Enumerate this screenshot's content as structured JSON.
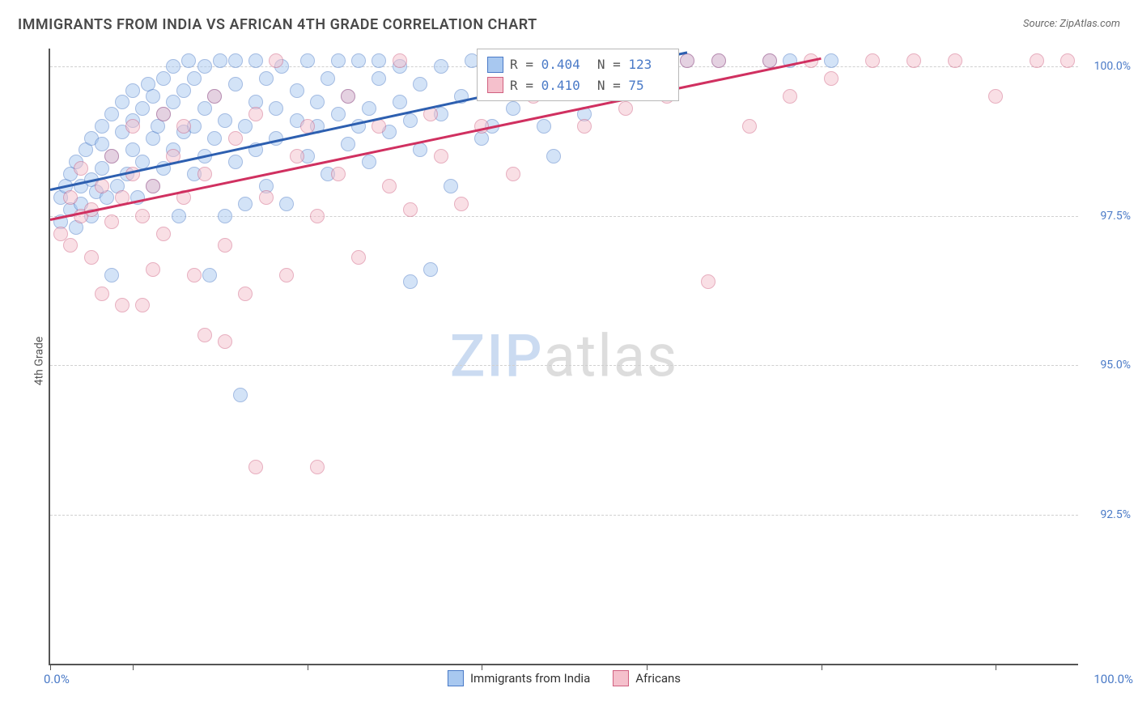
{
  "title": "IMMIGRANTS FROM INDIA VS AFRICAN 4TH GRADE CORRELATION CHART",
  "source": "Source: ZipAtlas.com",
  "ylabel": "4th Grade",
  "watermark_a": "ZIP",
  "watermark_b": "atlas",
  "chart": {
    "type": "scatter",
    "xlim": [
      0,
      100
    ],
    "ylim": [
      90,
      100.3
    ],
    "x_tick_positions": [
      0,
      8,
      25,
      42,
      58,
      75,
      92
    ],
    "xlim_labels": {
      "min": "0.0%",
      "max": "100.0%"
    },
    "y_ticks": [
      {
        "v": 92.5,
        "label": "92.5%"
      },
      {
        "v": 95.0,
        "label": "95.0%"
      },
      {
        "v": 97.5,
        "label": "97.5%"
      },
      {
        "v": 100.0,
        "label": "100.0%"
      }
    ],
    "grid_color": "#d0d0d0",
    "background_color": "#ffffff",
    "marker_radius": 8,
    "marker_opacity": 0.5,
    "series": [
      {
        "name": "Immigrants from India",
        "fill": "#a8c8f0",
        "stroke": "#4a7ac7",
        "line_color": "#2d5fb0",
        "R": "0.404",
        "N": "123",
        "trend": {
          "x1": 0,
          "y1": 97.95,
          "x2": 62,
          "y2": 100.25
        },
        "points": [
          [
            1,
            97.4
          ],
          [
            1,
            97.8
          ],
          [
            1.5,
            98.0
          ],
          [
            2,
            97.6
          ],
          [
            2,
            98.2
          ],
          [
            2.5,
            97.3
          ],
          [
            2.5,
            98.4
          ],
          [
            3,
            98.0
          ],
          [
            3,
            97.7
          ],
          [
            3.5,
            98.6
          ],
          [
            4,
            97.5
          ],
          [
            4,
            98.1
          ],
          [
            4,
            98.8
          ],
          [
            4.5,
            97.9
          ],
          [
            5,
            98.3
          ],
          [
            5,
            98.7
          ],
          [
            5,
            99.0
          ],
          [
            5.5,
            97.8
          ],
          [
            6,
            98.5
          ],
          [
            6,
            99.2
          ],
          [
            6,
            96.5
          ],
          [
            6.5,
            98.0
          ],
          [
            7,
            98.9
          ],
          [
            7,
            99.4
          ],
          [
            7.5,
            98.2
          ],
          [
            8,
            98.6
          ],
          [
            8,
            99.1
          ],
          [
            8,
            99.6
          ],
          [
            8.5,
            97.8
          ],
          [
            9,
            98.4
          ],
          [
            9,
            99.3
          ],
          [
            9.5,
            99.7
          ],
          [
            10,
            98.0
          ],
          [
            10,
            98.8
          ],
          [
            10,
            99.5
          ],
          [
            10.5,
            99.0
          ],
          [
            11,
            98.3
          ],
          [
            11,
            99.2
          ],
          [
            11,
            99.8
          ],
          [
            12,
            98.6
          ],
          [
            12,
            99.4
          ],
          [
            12,
            100.0
          ],
          [
            12.5,
            97.5
          ],
          [
            13,
            98.9
          ],
          [
            13,
            99.6
          ],
          [
            13.5,
            100.1
          ],
          [
            14,
            98.2
          ],
          [
            14,
            99.0
          ],
          [
            14,
            99.8
          ],
          [
            15,
            98.5
          ],
          [
            15,
            99.3
          ],
          [
            15,
            100.0
          ],
          [
            15.5,
            96.5
          ],
          [
            16,
            98.8
          ],
          [
            16,
            99.5
          ],
          [
            16.5,
            100.1
          ],
          [
            17,
            97.5
          ],
          [
            17,
            99.1
          ],
          [
            18,
            98.4
          ],
          [
            18,
            99.7
          ],
          [
            18,
            100.1
          ],
          [
            18.5,
            94.5
          ],
          [
            19,
            97.7
          ],
          [
            19,
            99.0
          ],
          [
            20,
            98.6
          ],
          [
            20,
            99.4
          ],
          [
            20,
            100.1
          ],
          [
            21,
            98.0
          ],
          [
            21,
            99.8
          ],
          [
            22,
            98.8
          ],
          [
            22,
            99.3
          ],
          [
            22.5,
            100.0
          ],
          [
            23,
            97.7
          ],
          [
            24,
            99.1
          ],
          [
            24,
            99.6
          ],
          [
            25,
            98.5
          ],
          [
            25,
            100.1
          ],
          [
            26,
            99.0
          ],
          [
            26,
            99.4
          ],
          [
            27,
            98.2
          ],
          [
            27,
            99.8
          ],
          [
            28,
            99.2
          ],
          [
            28,
            100.1
          ],
          [
            29,
            98.7
          ],
          [
            29,
            99.5
          ],
          [
            30,
            99.0
          ],
          [
            30,
            100.1
          ],
          [
            31,
            98.4
          ],
          [
            31,
            99.3
          ],
          [
            32,
            99.8
          ],
          [
            32,
            100.1
          ],
          [
            33,
            98.9
          ],
          [
            34,
            99.4
          ],
          [
            34,
            100.0
          ],
          [
            35,
            96.4
          ],
          [
            35,
            99.1
          ],
          [
            36,
            98.6
          ],
          [
            36,
            99.7
          ],
          [
            37,
            96.6
          ],
          [
            38,
            99.2
          ],
          [
            38,
            100.0
          ],
          [
            39,
            98.0
          ],
          [
            40,
            99.5
          ],
          [
            41,
            100.1
          ],
          [
            42,
            98.8
          ],
          [
            43,
            99.0
          ],
          [
            44,
            100.1
          ],
          [
            45,
            99.3
          ],
          [
            46,
            99.8
          ],
          [
            47,
            100.1
          ],
          [
            48,
            99.0
          ],
          [
            49,
            98.5
          ],
          [
            50,
            100.1
          ],
          [
            52,
            99.2
          ],
          [
            54,
            100.1
          ],
          [
            56,
            99.8
          ],
          [
            58,
            100.1
          ],
          [
            60,
            100.1
          ],
          [
            62,
            100.1
          ],
          [
            65,
            100.1
          ],
          [
            70,
            100.1
          ],
          [
            72,
            100.1
          ],
          [
            76,
            100.1
          ]
        ]
      },
      {
        "name": "Africans",
        "fill": "#f5c0cc",
        "stroke": "#d06080",
        "line_color": "#d03060",
        "R": "0.410",
        "N": "75",
        "trend": {
          "x1": 0,
          "y1": 97.45,
          "x2": 75,
          "y2": 100.15
        },
        "points": [
          [
            1,
            97.2
          ],
          [
            2,
            97.0
          ],
          [
            2,
            97.8
          ],
          [
            3,
            97.5
          ],
          [
            3,
            98.3
          ],
          [
            4,
            96.8
          ],
          [
            4,
            97.6
          ],
          [
            5,
            98.0
          ],
          [
            5,
            96.2
          ],
          [
            6,
            97.4
          ],
          [
            6,
            98.5
          ],
          [
            7,
            96.0
          ],
          [
            7,
            97.8
          ],
          [
            8,
            98.2
          ],
          [
            8,
            99.0
          ],
          [
            9,
            96.0
          ],
          [
            9,
            97.5
          ],
          [
            10,
            98.0
          ],
          [
            10,
            96.6
          ],
          [
            11,
            99.2
          ],
          [
            11,
            97.2
          ],
          [
            12,
            98.5
          ],
          [
            13,
            97.8
          ],
          [
            13,
            99.0
          ],
          [
            14,
            96.5
          ],
          [
            15,
            98.2
          ],
          [
            15,
            95.5
          ],
          [
            16,
            99.5
          ],
          [
            17,
            97.0
          ],
          [
            17,
            95.4
          ],
          [
            18,
            98.8
          ],
          [
            19,
            96.2
          ],
          [
            20,
            99.2
          ],
          [
            20,
            93.3
          ],
          [
            21,
            97.8
          ],
          [
            22,
            100.1
          ],
          [
            23,
            96.5
          ],
          [
            24,
            98.5
          ],
          [
            25,
            99.0
          ],
          [
            26,
            93.3
          ],
          [
            26,
            97.5
          ],
          [
            28,
            98.2
          ],
          [
            29,
            99.5
          ],
          [
            30,
            96.8
          ],
          [
            32,
            99.0
          ],
          [
            33,
            98.0
          ],
          [
            34,
            100.1
          ],
          [
            35,
            97.6
          ],
          [
            37,
            99.2
          ],
          [
            38,
            98.5
          ],
          [
            40,
            97.7
          ],
          [
            42,
            99.0
          ],
          [
            43,
            100.1
          ],
          [
            45,
            98.2
          ],
          [
            47,
            99.5
          ],
          [
            50,
            100.1
          ],
          [
            52,
            99.0
          ],
          [
            54,
            100.1
          ],
          [
            56,
            99.3
          ],
          [
            58,
            100.1
          ],
          [
            60,
            99.5
          ],
          [
            62,
            100.1
          ],
          [
            64,
            96.4
          ],
          [
            65,
            100.1
          ],
          [
            68,
            99.0
          ],
          [
            70,
            100.1
          ],
          [
            72,
            99.5
          ],
          [
            74,
            100.1
          ],
          [
            76,
            99.8
          ],
          [
            80,
            100.1
          ],
          [
            84,
            100.1
          ],
          [
            88,
            100.1
          ],
          [
            92,
            99.5
          ],
          [
            96,
            100.1
          ],
          [
            99,
            100.1
          ]
        ]
      }
    ],
    "bottom_legend": [
      {
        "label": "Immigrants from India",
        "fill": "#a8c8f0",
        "stroke": "#4a7ac7"
      },
      {
        "label": "Africans",
        "fill": "#f5c0cc",
        "stroke": "#d06080"
      }
    ],
    "legend_stats_pos": {
      "left_pct": 41.5,
      "top_pct": 0
    }
  }
}
